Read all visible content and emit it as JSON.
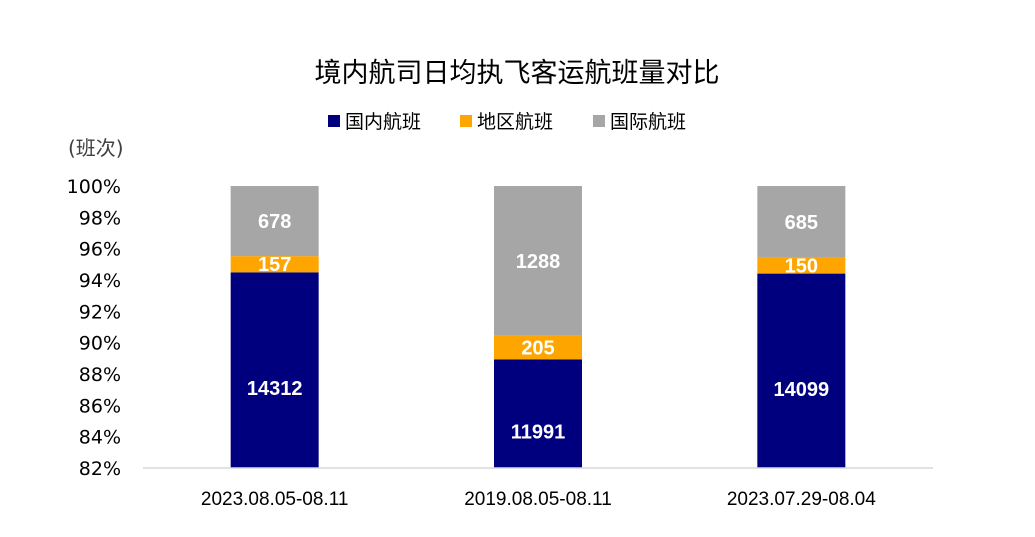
{
  "chart_data": {
    "type": "bar",
    "stacked": "percent",
    "title": "境内航司日均执飞客运航班量对比",
    "ylabel": "(班次)",
    "ylim": [
      0.82,
      1.0
    ],
    "yticks": [
      "82%",
      "84%",
      "86%",
      "88%",
      "90%",
      "92%",
      "94%",
      "96%",
      "98%",
      "100%"
    ],
    "legend_position": "top",
    "categories": [
      "2023.08.05-08.11",
      "2019.08.05-08.11",
      "2023.07.29-08.04"
    ],
    "series": [
      {
        "name": "国内航班",
        "color": "#00007f",
        "values": [
          14312,
          11991,
          14099
        ]
      },
      {
        "name": "地区航班",
        "color": "#ffa500",
        "values": [
          157,
          205,
          150
        ]
      },
      {
        "name": "国际航班",
        "color": "#a6a6a6",
        "values": [
          678,
          1288,
          685
        ]
      }
    ]
  }
}
